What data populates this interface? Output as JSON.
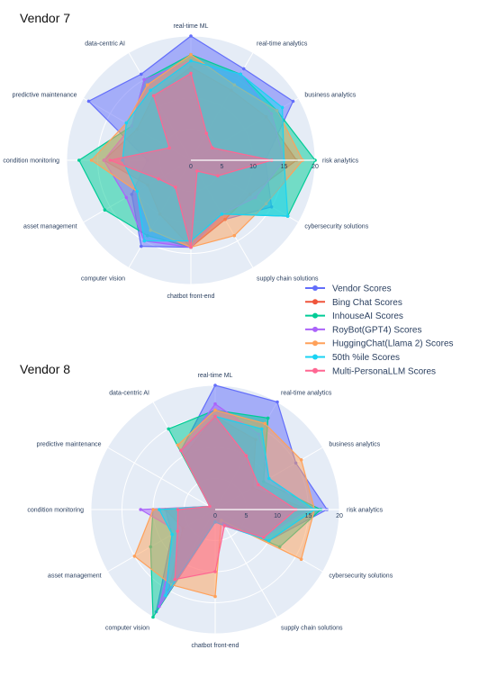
{
  "chart_data": [
    {
      "type": "radar",
      "title": "Vendor  7",
      "categories": [
        "real-time ML",
        "real-time analytics",
        "business analytics",
        "risk analytics",
        "cybersecurity solutions",
        "supply chain solutions",
        "chatbot front-end",
        "computer vision",
        "asset management",
        "condition monitoring",
        "predictive maintenance",
        "data-centric AI"
      ],
      "radial_range": [
        0,
        20
      ],
      "radial_ticks": [
        0,
        5,
        10,
        15,
        20
      ],
      "grid": true,
      "series": [
        {
          "name": "Vendor Scores",
          "color": "#636efa",
          "values": [
            20,
            17,
            19,
            12,
            15,
            11,
            14,
            16,
            11,
            7,
            19,
            16
          ]
        },
        {
          "name": "Bing Chat Scores",
          "color": "#ef553b",
          "values": [
            15,
            13,
            14,
            17,
            11,
            11,
            14,
            10,
            8,
            14,
            10,
            12
          ]
        },
        {
          "name": "InhouseAI Scores",
          "color": "#00cc96",
          "values": [
            17,
            16,
            16,
            20,
            18,
            10,
            14,
            14,
            16,
            18,
            11,
            15
          ]
        },
        {
          "name": "RoyBot(GPT4) Scores",
          "color": "#ab63fa",
          "values": [
            16,
            16,
            15,
            15,
            12,
            10,
            14,
            15,
            12,
            14,
            11,
            15
          ]
        },
        {
          "name": "HuggingChat(Llama 2) Scores",
          "color": "#ffa15a",
          "values": [
            17,
            14,
            16,
            18,
            14,
            14,
            14,
            13,
            10,
            16,
            12,
            14
          ]
        },
        {
          "name": "50th %ile Scores",
          "color": "#19d3f3",
          "values": [
            16,
            16,
            17,
            15,
            18,
            10,
            13,
            15,
            10,
            11,
            12,
            13
          ]
        },
        {
          "name": "Multi-PersonaLLM Scores",
          "color": "#ff6692",
          "values": [
            14,
            5,
            4,
            13,
            5,
            2,
            14,
            5,
            6,
            13,
            4,
            12
          ]
        }
      ]
    },
    {
      "type": "radar",
      "title": "Vendor  8",
      "categories": [
        "real-time ML",
        "real-time analytics",
        "business analytics",
        "risk analytics",
        "cybersecurity solutions",
        "supply chain solutions",
        "chatbot front-end",
        "computer vision",
        "asset management",
        "condition monitoring",
        "predictive maintenance",
        "data-centric AI"
      ],
      "radial_range": [
        0,
        20
      ],
      "radial_ticks": [
        0,
        5,
        10,
        15,
        20
      ],
      "grid": true,
      "series": [
        {
          "name": "Vendor Scores",
          "color": "#636efa",
          "values": [
            20,
            20,
            15,
            18,
            10,
            3,
            2,
            19,
            8,
            8,
            1,
            11
          ]
        },
        {
          "name": "Bing Chat Scores",
          "color": "#ef553b",
          "values": [
            15,
            13,
            7,
            15,
            9,
            3,
            2,
            15,
            6,
            8,
            1,
            10
          ]
        },
        {
          "name": "InhouseAI Scores",
          "color": "#00cc96",
          "values": [
            16,
            17,
            9,
            17,
            12,
            2,
            2,
            20,
            12,
            10,
            1,
            15
          ]
        },
        {
          "name": "RoyBot(GPT4) Scores",
          "color": "#ab63fa",
          "values": [
            17,
            14,
            10,
            15,
            9,
            3,
            2,
            18,
            7,
            12,
            1,
            11
          ]
        },
        {
          "name": "HuggingChat(Llama 2) Scores",
          "color": "#ffa15a",
          "values": [
            16,
            16,
            16,
            16,
            16,
            2,
            14,
            14,
            15,
            10,
            1,
            12
          ]
        },
        {
          "name": "50th %ile Scores",
          "color": "#19d3f3",
          "values": [
            15,
            15,
            10,
            16,
            10,
            3,
            2,
            16,
            8,
            9,
            1,
            11
          ]
        },
        {
          "name": "Multi-PersonaLLM Scores",
          "color": "#ff6692",
          "values": [
            15,
            10,
            8,
            13,
            9,
            3,
            10,
            13,
            7,
            6,
            1,
            11
          ]
        }
      ]
    }
  ],
  "legend": {
    "placement": "right",
    "items": [
      "Vendor Scores",
      "Bing Chat Scores",
      "InhouseAI Scores",
      "RoyBot(GPT4) Scores",
      "HuggingChat(Llama 2) Scores",
      "50th %ile Scores",
      "Multi-PersonaLLM Scores"
    ]
  },
  "colors": {
    "polar_bg": "#e5ecf6",
    "grid": "#ffffff",
    "text": "#2a3f5f"
  }
}
